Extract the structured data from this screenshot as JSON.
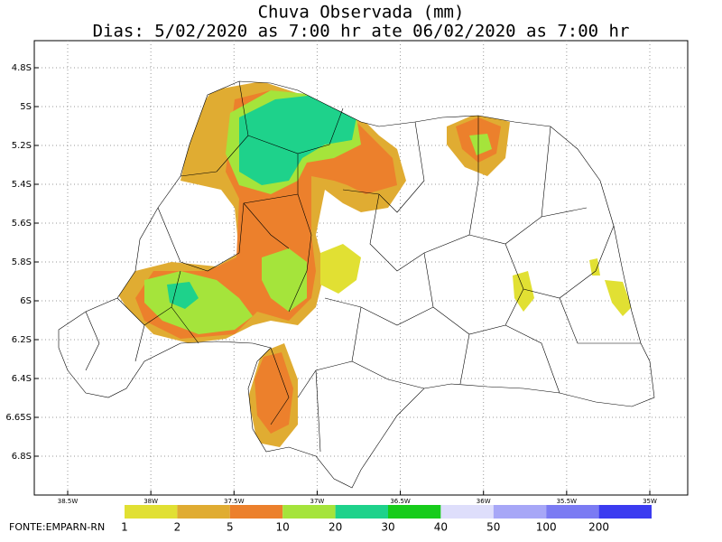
{
  "title": "Chuva Observada (mm)",
  "subtitle": "Dias: 5/02/2020 as 7:00 hr ate 06/02/2020 as 7:00 hr",
  "lat_labels": [
    "4.8S",
    "5S",
    "5.2S",
    "5.4S",
    "5.6S",
    "5.8S",
    "6S",
    "6.2S",
    "6.4S",
    "6.65S",
    "6.8S"
  ],
  "lon_labels": [
    "38.5W",
    "38W",
    "37.5W",
    "37W",
    "36.5W",
    "36W",
    "35.5W",
    "35W"
  ],
  "legend": {
    "labels": [
      "1",
      "2",
      "5",
      "10",
      "20",
      "30",
      "40",
      "50",
      "100",
      "200"
    ],
    "colors": [
      "#e1e033",
      "#e0ac32",
      "#ec802c",
      "#a5e43b",
      "#1ed28b",
      "#17cc1b",
      "#dedefb",
      "#a7a7f7",
      "#7b7bf3",
      "#3b3bf0"
    ]
  },
  "source": "FONTE:EMPARN-RN"
}
